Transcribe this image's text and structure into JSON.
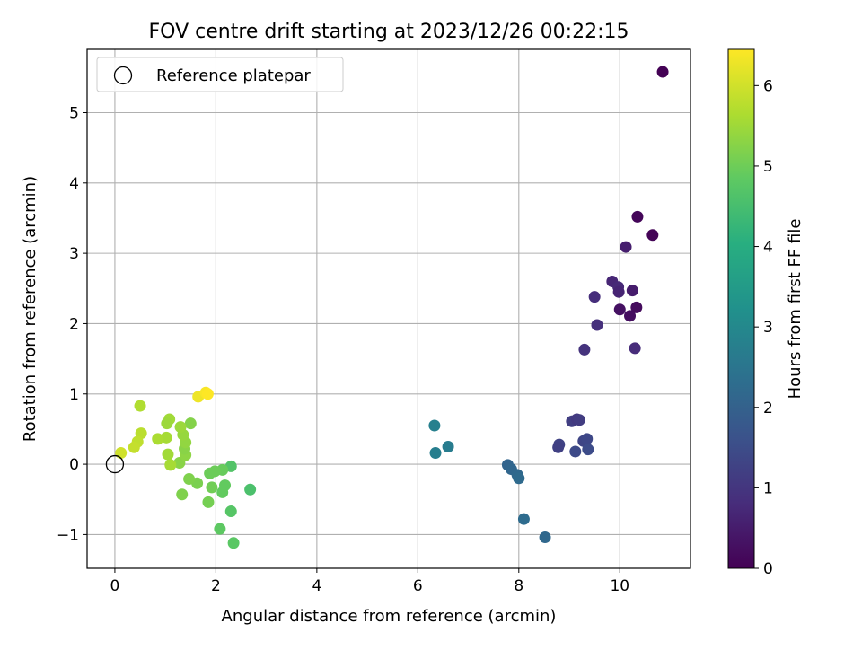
{
  "chart_data": {
    "type": "scatter",
    "title": "FOV centre drift starting at 2023/12/26 00:22:15",
    "xlabel": "Angular distance from reference (arcmin)",
    "ylabel": "Rotation from reference (arcmin)",
    "xlim": [
      -0.55,
      11.4
    ],
    "ylim": [
      -1.48,
      5.9
    ],
    "xticks": [
      0,
      2,
      4,
      6,
      8,
      10
    ],
    "yticks": [
      -1,
      0,
      1,
      2,
      3,
      4,
      5
    ],
    "xtick_labels": [
      "0",
      "2",
      "4",
      "6",
      "8",
      "10"
    ],
    "ytick_labels": [
      "−1",
      "0",
      "1",
      "2",
      "3",
      "4",
      "5"
    ],
    "grid": true,
    "legend": {
      "position": "top-left",
      "entries": [
        "Reference platepar"
      ]
    },
    "colorbar": {
      "label": "Hours from first FF file",
      "colormap": "viridis",
      "range": [
        0,
        6.45
      ],
      "ticks": [
        0,
        1,
        2,
        3,
        4,
        5,
        6
      ],
      "tick_labels": [
        "0",
        "1",
        "2",
        "3",
        "4",
        "5",
        "6"
      ]
    },
    "reference_point": {
      "x": 0,
      "y": 0,
      "name": "Reference platepar"
    },
    "points": [
      {
        "x": 10.85,
        "y": 5.58,
        "h": 0.02
      },
      {
        "x": 10.35,
        "y": 3.52,
        "h": 0.1
      },
      {
        "x": 10.65,
        "y": 3.26,
        "h": 0.05
      },
      {
        "x": 10.12,
        "y": 3.09,
        "h": 0.55
      },
      {
        "x": 9.85,
        "y": 2.6,
        "h": 0.7
      },
      {
        "x": 9.97,
        "y": 2.52,
        "h": 0.75
      },
      {
        "x": 9.98,
        "y": 2.45,
        "h": 0.65
      },
      {
        "x": 10.25,
        "y": 2.47,
        "h": 0.5
      },
      {
        "x": 10.33,
        "y": 2.23,
        "h": 0.2
      },
      {
        "x": 10.0,
        "y": 2.2,
        "h": 0.3
      },
      {
        "x": 10.2,
        "y": 2.11,
        "h": 0.25
      },
      {
        "x": 9.5,
        "y": 2.38,
        "h": 0.85
      },
      {
        "x": 9.55,
        "y": 1.98,
        "h": 0.9
      },
      {
        "x": 9.3,
        "y": 1.63,
        "h": 0.95
      },
      {
        "x": 10.3,
        "y": 1.65,
        "h": 0.8
      },
      {
        "x": 9.05,
        "y": 0.61,
        "h": 1.2
      },
      {
        "x": 9.15,
        "y": 0.64,
        "h": 1.1
      },
      {
        "x": 9.2,
        "y": 0.63,
        "h": 1.15
      },
      {
        "x": 8.8,
        "y": 0.28,
        "h": 1.3
      },
      {
        "x": 8.78,
        "y": 0.24,
        "h": 1.25
      },
      {
        "x": 9.28,
        "y": 0.33,
        "h": 1.35
      },
      {
        "x": 9.35,
        "y": 0.36,
        "h": 1.4
      },
      {
        "x": 9.12,
        "y": 0.18,
        "h": 1.45
      },
      {
        "x": 9.37,
        "y": 0.21,
        "h": 1.5
      },
      {
        "x": 7.78,
        "y": -0.01,
        "h": 2.1
      },
      {
        "x": 7.85,
        "y": -0.07,
        "h": 2.15
      },
      {
        "x": 7.97,
        "y": -0.15,
        "h": 2.2
      },
      {
        "x": 8.0,
        "y": -0.2,
        "h": 2.25
      },
      {
        "x": 8.1,
        "y": -0.78,
        "h": 2.3
      },
      {
        "x": 8.52,
        "y": -1.04,
        "h": 2.2
      },
      {
        "x": 6.33,
        "y": 0.55,
        "h": 2.8
      },
      {
        "x": 6.35,
        "y": 0.16,
        "h": 2.75
      },
      {
        "x": 6.6,
        "y": 0.25,
        "h": 2.7
      },
      {
        "x": 2.68,
        "y": -0.36,
        "h": 4.6
      },
      {
        "x": 2.3,
        "y": -0.03,
        "h": 4.7
      },
      {
        "x": 2.3,
        "y": -0.67,
        "h": 4.75
      },
      {
        "x": 2.35,
        "y": -1.12,
        "h": 4.8
      },
      {
        "x": 2.08,
        "y": -0.92,
        "h": 4.85
      },
      {
        "x": 2.18,
        "y": -0.3,
        "h": 4.9
      },
      {
        "x": 2.13,
        "y": -0.4,
        "h": 4.9
      },
      {
        "x": 2.13,
        "y": -0.08,
        "h": 4.95
      },
      {
        "x": 1.98,
        "y": -0.1,
        "h": 5.0
      },
      {
        "x": 1.88,
        "y": -0.13,
        "h": 5.0
      },
      {
        "x": 1.92,
        "y": -0.33,
        "h": 5.05
      },
      {
        "x": 1.85,
        "y": -0.54,
        "h": 5.1
      },
      {
        "x": 1.63,
        "y": -0.27,
        "h": 5.15
      },
      {
        "x": 1.47,
        "y": -0.21,
        "h": 5.2
      },
      {
        "x": 1.33,
        "y": -0.43,
        "h": 5.2
      },
      {
        "x": 1.5,
        "y": 0.58,
        "h": 5.25
      },
      {
        "x": 1.28,
        "y": 0.02,
        "h": 5.3
      },
      {
        "x": 1.4,
        "y": 0.13,
        "h": 5.35
      },
      {
        "x": 1.38,
        "y": 0.22,
        "h": 5.3
      },
      {
        "x": 1.4,
        "y": 0.31,
        "h": 5.4
      },
      {
        "x": 1.35,
        "y": 0.42,
        "h": 5.45
      },
      {
        "x": 1.3,
        "y": 0.53,
        "h": 5.5
      },
      {
        "x": 1.08,
        "y": 0.64,
        "h": 5.55
      },
      {
        "x": 1.03,
        "y": 0.58,
        "h": 5.5
      },
      {
        "x": 1.05,
        "y": 0.14,
        "h": 5.55
      },
      {
        "x": 1.1,
        "y": -0.01,
        "h": 5.6
      },
      {
        "x": 1.02,
        "y": 0.38,
        "h": 5.6
      },
      {
        "x": 0.85,
        "y": 0.36,
        "h": 5.65
      },
      {
        "x": 0.5,
        "y": 0.83,
        "h": 5.7
      },
      {
        "x": 0.52,
        "y": 0.44,
        "h": 5.8
      },
      {
        "x": 0.45,
        "y": 0.32,
        "h": 5.85
      },
      {
        "x": 0.38,
        "y": 0.24,
        "h": 5.9
      },
      {
        "x": 0.12,
        "y": 0.16,
        "h": 6.0
      },
      {
        "x": 1.65,
        "y": 0.96,
        "h": 6.3
      },
      {
        "x": 1.8,
        "y": 1.02,
        "h": 6.4
      },
      {
        "x": 1.84,
        "y": 1.0,
        "h": 6.45
      }
    ]
  }
}
